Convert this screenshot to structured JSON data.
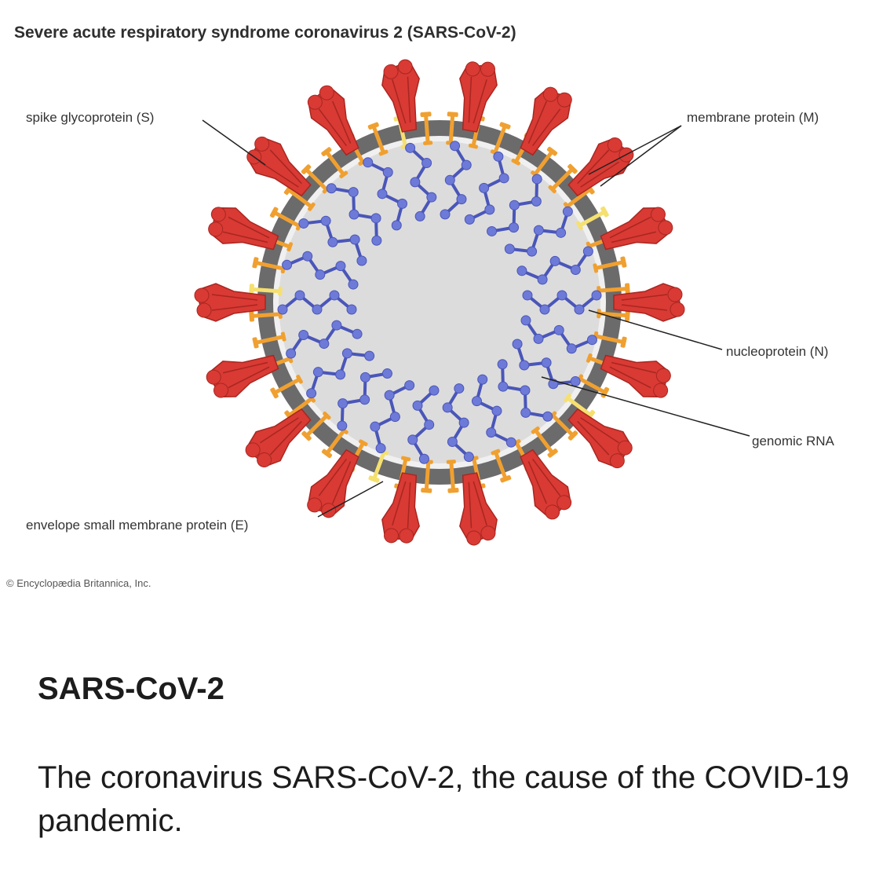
{
  "figure": {
    "title": "Severe acute respiratory syndrome coronavirus 2 (SARS-CoV-2)",
    "labels": {
      "spike": "spike glycoprotein (S)",
      "membrane": "membrane protein (M)",
      "nucleoprotein": "nucleoprotein (N)",
      "rna": "genomic RNA",
      "envelope": "envelope small membrane protein (E)"
    },
    "copyright": "© Encyclopædia Britannica, Inc.",
    "colors": {
      "spike": "#d93a34",
      "membrane_ring": "#6b6b6b",
      "membrane_protein": "#f0a030",
      "envelope_protein": "#f5e070",
      "interior": "#dcdcdc",
      "nucleoprotein": "#6e7ad8"
    },
    "icons": [
      "spike-icon",
      "membrane-protein-icon",
      "envelope-protein-icon",
      "nucleoprotein-icon"
    ]
  },
  "caption": {
    "title": "SARS-CoV-2",
    "text": "The coronavirus SARS-CoV-2, the cause of the COVID-19 pandemic."
  }
}
